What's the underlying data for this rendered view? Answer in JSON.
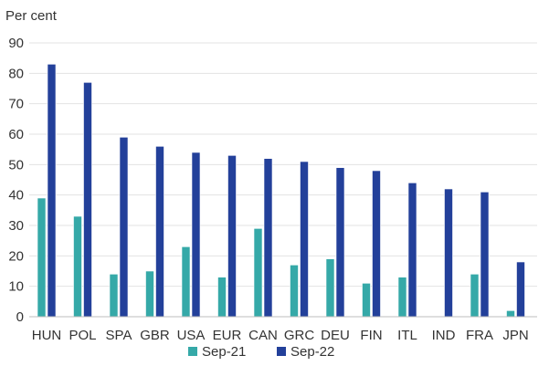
{
  "chart_data": {
    "type": "bar",
    "ylabel": "Per cent",
    "ylim": [
      0,
      90
    ],
    "yticks": [
      0,
      10,
      20,
      30,
      40,
      50,
      60,
      70,
      80,
      90
    ],
    "grid": true,
    "legend_position": "bottom",
    "categories": [
      "HUN",
      "POL",
      "SPA",
      "GBR",
      "USA",
      "EUR",
      "CAN",
      "GRC",
      "DEU",
      "FIN",
      "ITL",
      "IND",
      "FRA",
      "JPN"
    ],
    "series": [
      {
        "name": "Sep-21",
        "color": "#35a9a8",
        "values": [
          39,
          33,
          14,
          15,
          23,
          13,
          29,
          17,
          19,
          11,
          13,
          0,
          14,
          2
        ]
      },
      {
        "name": "Sep-22",
        "color": "#23409a",
        "values": [
          83,
          77,
          59,
          56,
          54,
          53,
          52,
          51,
          49,
          48,
          44,
          42,
          41,
          18
        ]
      }
    ]
  }
}
